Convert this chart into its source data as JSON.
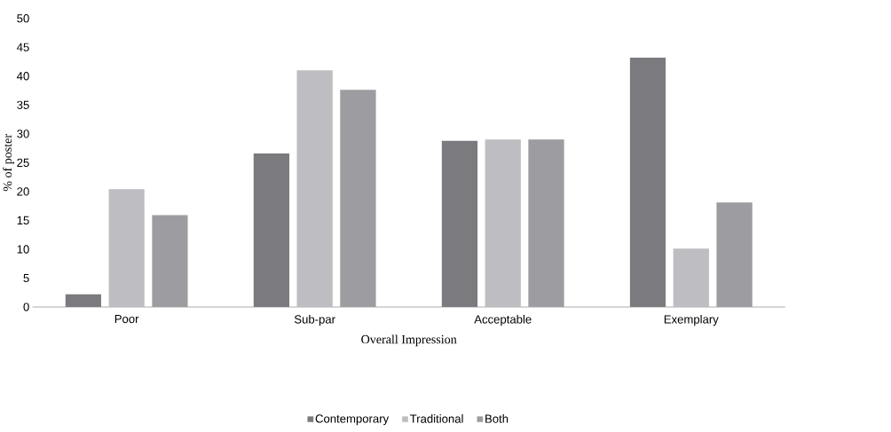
{
  "chart_data": {
    "type": "bar",
    "xlabel": "Overall Impression",
    "ylabel": "% of poster",
    "categories": [
      "Poor",
      "Sub-par",
      "Acceptable",
      "Exemplary"
    ],
    "series": [
      {
        "name": "Contemporary",
        "color": "#7b7b7f",
        "values": [
          2.2,
          26.6,
          28.8,
          43.2
        ]
      },
      {
        "name": "Traditional",
        "color": "#bebec2",
        "values": [
          20.4,
          41.0,
          29.0,
          10.1
        ]
      },
      {
        "name": "Both",
        "color": "#9d9da1",
        "values": [
          15.9,
          37.6,
          29.0,
          18.1
        ]
      }
    ],
    "ylim": [
      0,
      50
    ],
    "yticks": [
      0,
      5,
      10,
      15,
      20,
      25,
      30,
      35,
      40,
      45,
      50
    ],
    "legend": "bottom"
  }
}
